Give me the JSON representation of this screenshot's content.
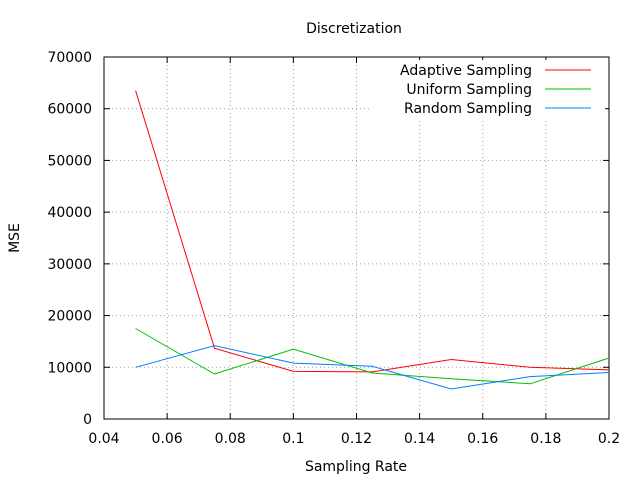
{
  "chart_data": {
    "type": "line",
    "title": "Discretization",
    "xlabel": "Sampling Rate",
    "ylabel": "MSE",
    "xlim": [
      0.04,
      0.2
    ],
    "ylim": [
      0,
      70000
    ],
    "xticks": [
      "0.04",
      "0.06",
      "0.08",
      "0.1",
      "0.12",
      "0.14",
      "0.16",
      "0.18",
      "0.2"
    ],
    "yticks": [
      "0",
      "10000",
      "20000",
      "30000",
      "40000",
      "50000",
      "60000",
      "70000"
    ],
    "grid": true,
    "legend_position": "top-right",
    "series": [
      {
        "name": "Adaptive Sampling",
        "color": "#ff0000",
        "x": [
          0.05,
          0.075,
          0.1,
          0.125,
          0.15,
          0.175,
          0.2
        ],
        "y": [
          63500,
          13700,
          9200,
          9100,
          11500,
          10000,
          9500
        ]
      },
      {
        "name": "Uniform Sampling",
        "color": "#00c000",
        "x": [
          0.05,
          0.075,
          0.1,
          0.125,
          0.15,
          0.175,
          0.2
        ],
        "y": [
          17500,
          8700,
          13500,
          8900,
          7800,
          6800,
          11800
        ]
      },
      {
        "name": "Random Sampling",
        "color": "#0080ff",
        "x": [
          0.05,
          0.075,
          0.1,
          0.125,
          0.15,
          0.175,
          0.2
        ],
        "y": [
          10000,
          14200,
          10800,
          10200,
          5800,
          8200,
          9000
        ]
      }
    ]
  }
}
